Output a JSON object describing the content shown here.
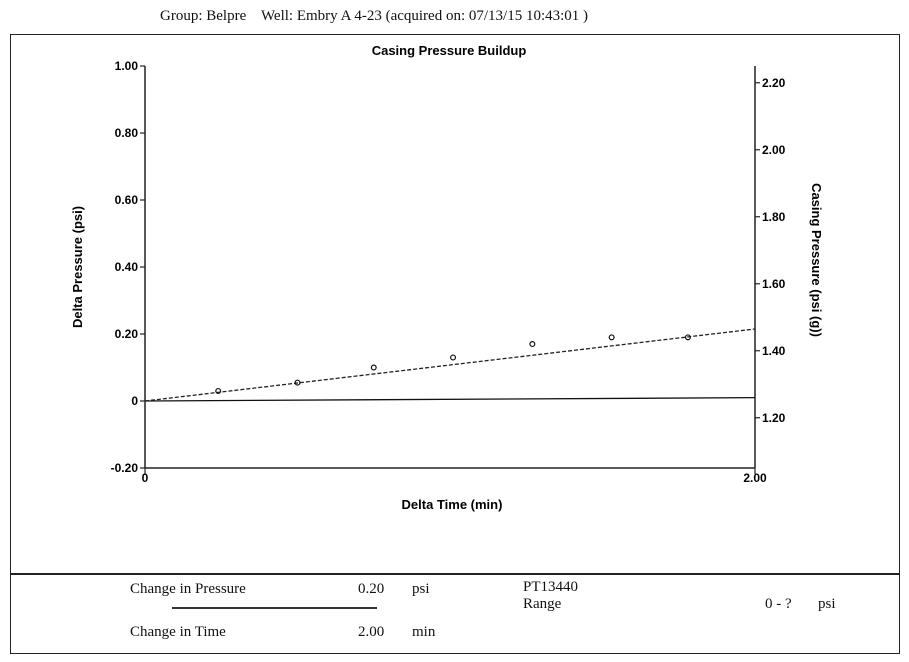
{
  "header": {
    "group": "Group: Belpre",
    "well": "Well: Embry A 4-23 (acquired on: 07/13/15 10:43:01 )"
  },
  "chart_data": {
    "type": "scatter",
    "title": "Casing Pressure Buildup",
    "xlabel": "Delta Time (min)",
    "ylabel": "Delta Pressure (psi)",
    "y2label": "Casing Pressure (psi (g))",
    "xlim": [
      0,
      2.0
    ],
    "ylim": [
      -0.2,
      1.0
    ],
    "y2lim": [
      1.05,
      2.25
    ],
    "x_ticks": [
      "0",
      "2.00"
    ],
    "y_ticks": [
      {
        "v": 1.0,
        "label": "1.00"
      },
      {
        "v": 0.8,
        "label": "0.80"
      },
      {
        "v": 0.6,
        "label": "0.60"
      },
      {
        "v": 0.4,
        "label": "0.40"
      },
      {
        "v": 0.2,
        "label": "0.20"
      },
      {
        "v": 0.0,
        "label": "0"
      },
      {
        "v": -0.2,
        "label": "-0.20"
      }
    ],
    "y2_ticks": [
      {
        "v": 2.2,
        "label": "2.20"
      },
      {
        "v": 2.0,
        "label": "2.00"
      },
      {
        "v": 1.8,
        "label": "1.80"
      },
      {
        "v": 1.6,
        "label": "1.60"
      },
      {
        "v": 1.4,
        "label": "1.40"
      },
      {
        "v": 1.2,
        "label": "1.20"
      }
    ],
    "points": [
      {
        "x": 0.24,
        "y": 0.03
      },
      {
        "x": 0.5,
        "y": 0.055
      },
      {
        "x": 0.75,
        "y": 0.1
      },
      {
        "x": 1.01,
        "y": 0.13
      },
      {
        "x": 1.27,
        "y": 0.17
      },
      {
        "x": 1.53,
        "y": 0.19
      },
      {
        "x": 1.78,
        "y": 0.19
      }
    ],
    "fit_line": {
      "x": [
        0,
        2.0
      ],
      "y": [
        0,
        0.215
      ]
    },
    "zero_line": {
      "x": [
        0,
        2.0
      ],
      "y": [
        0,
        0.01
      ]
    }
  },
  "footer": {
    "change_pressure_label": "Change in Pressure",
    "change_pressure_value": "0.20",
    "change_pressure_unit": "psi",
    "change_time_label": "Change in Time",
    "change_time_value": "2.00",
    "change_time_unit": "min",
    "gauge_id": "PT13440",
    "range_label": "Range",
    "range_value": "0 - ?",
    "range_unit": "psi"
  }
}
